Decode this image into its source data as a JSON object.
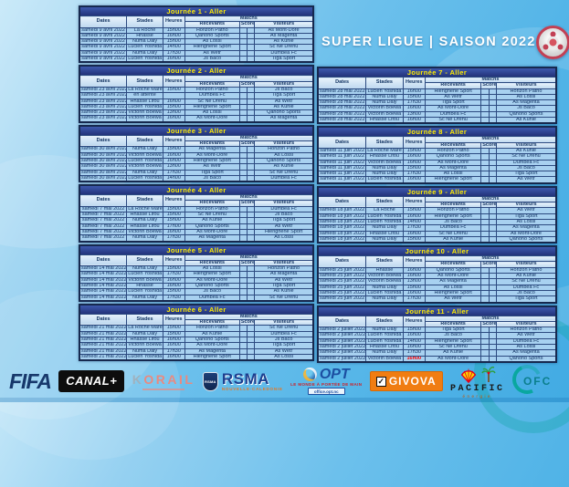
{
  "header": {
    "title": "SUPER LIGUE | SAISON 2022"
  },
  "table_columns": {
    "dates": "Dates",
    "stades": "Stades",
    "heures": "Heures",
    "matchs": "Matchs",
    "recevants": "Recevants",
    "scores": "Scores",
    "visiteurs": "Visiteurs"
  },
  "journees": [
    {
      "title": "Journée 1 - Aller",
      "rows": [
        {
          "date": "samedi 9 avril 2022",
          "stade": "La Roche",
          "heure": "15h00",
          "recevant": "Horizon Patho",
          "visiteur": "As Mont-Dore"
        },
        {
          "date": "samedi 9 avril 2022",
          "stade": "Hnassé",
          "heure": "16h00",
          "recevant": "Qanono Sports",
          "visiteur": "As Magenta"
        },
        {
          "date": "samedi 9 avril 2022",
          "stade": "Numa Daly",
          "heure": "15h00",
          "recevant": "As Lossi",
          "visiteur": "As Kunie"
        },
        {
          "date": "samedi 9 avril 2022",
          "stade": "Lucien Yoshida",
          "heure": "14h00",
          "recevant": "Hienghène Sport",
          "visiteur": "Sc Ne Drehu"
        },
        {
          "date": "samedi 9 avril 2022",
          "stade": "Numa Daly",
          "heure": "17h30",
          "recevant": "As Wetr",
          "visiteur": "Dumbea Fc"
        },
        {
          "date": "samedi 9 avril 2022",
          "stade": "Lucien Yoshida",
          "heure": "16h00",
          "recevant": "Js Baco",
          "visiteur": "Tiga Sport"
        }
      ]
    },
    {
      "title": "Journée 2 - Aller",
      "rows": [
        {
          "date": "samedi 23 avril 2022",
          "stade": "La Roche Maré",
          "heure": "15h00",
          "recevant": "Horizon Patho",
          "visiteur": "Js Baco"
        },
        {
          "date": "samedi 23 avril 2022",
          "stade": "en attente",
          "heure": "",
          "recevant": "Dumbea Fc",
          "visiteur": "Tiga Sport"
        },
        {
          "date": "samedi 23 avril 2022",
          "stade": "Hnasse Lifou",
          "heure": "16h00",
          "recevant": "Sc Ne Drehu",
          "visiteur": "As Wetr"
        },
        {
          "date": "samedi 23 avril 2022",
          "stade": "Lucien Yoshida",
          "heure": "15h00",
          "recevant": "Hienghène Sport",
          "visiteur": "As Kunie"
        },
        {
          "date": "samedi 23 avril 2022",
          "stade": "Victorin Boewa",
          "heure": "13h00",
          "recevant": "As Lossi",
          "visiteur": "Qanono Sports"
        },
        {
          "date": "samedi 23 avril 2022",
          "stade": "Victorin Boewa",
          "heure": "16h00",
          "recevant": "As Mont-Dore",
          "visiteur": "As Magenta"
        }
      ]
    },
    {
      "title": "Journée 3 - Aller",
      "rows": [
        {
          "date": "samedi 30 avril 2022",
          "stade": "Numa Daly",
          "heure": "15h00",
          "recevant": "As Magenta",
          "visiteur": "Horizon Patho"
        },
        {
          "date": "samedi 30 avril 2022",
          "stade": "Victorin Boewa",
          "heure": "16h00",
          "recevant": "As Mont-Dore",
          "visiteur": "As Lossi"
        },
        {
          "date": "samedi 30 avril 2022",
          "stade": "Lucien Yoshida",
          "heure": "16h00",
          "recevant": "Hienghène Sport",
          "visiteur": "Qanono Sports"
        },
        {
          "date": "samedi 30 avril 2022",
          "stade": "Victorin Boewa",
          "heure": "13h00",
          "recevant": "As Wetr",
          "visiteur": "As Kunie"
        },
        {
          "date": "samedi 30 avril 2022",
          "stade": "Numa Daly",
          "heure": "17h30",
          "recevant": "Tiga Sport",
          "visiteur": "Sc Ne Drehu"
        },
        {
          "date": "samedi 30 avril 2022",
          "stade": "Lucien Yoshida",
          "heure": "14h00",
          "recevant": "Js Baco",
          "visiteur": "Dumbea Fc"
        }
      ]
    },
    {
      "title": "Journée 4 - Aller",
      "rows": [
        {
          "date": "samedi 7 mai 2022",
          "stade": "La Roche Maré",
          "heure": "15h00",
          "recevant": "Horizon Patho",
          "visiteur": "Dumbea Fc"
        },
        {
          "date": "samedi 7 mai 2022",
          "stade": "Hnasse Lifou",
          "heure": "15h00",
          "recevant": "Sc Ne Drehu",
          "visiteur": "Js Baco"
        },
        {
          "date": "samedi 7 mai 2022",
          "stade": "Numa Daly",
          "heure": "15h00",
          "recevant": "As Kunie",
          "visiteur": "Tiga Sport"
        },
        {
          "date": "samedi 7 mai 2022",
          "stade": "Hnasse Lifou",
          "heure": "17h00",
          "recevant": "Qanono Sports",
          "visiteur": "As Wetr"
        },
        {
          "date": "samedi 7 mai 2022",
          "stade": "Victorin Boewa",
          "heure": "16h00",
          "recevant": "As Mont-Dore",
          "visiteur": "Hienghène Sport"
        },
        {
          "date": "samedi 7 mai 2022",
          "stade": "Numa Daly",
          "heure": "17h30",
          "recevant": "As Magenta",
          "visiteur": "As Lossi"
        }
      ]
    },
    {
      "title": "Journée 5 - Aller",
      "rows": [
        {
          "date": "samedi 14 mai 2022",
          "stade": "Numa Daly",
          "heure": "15h00",
          "recevant": "As Lossi",
          "visiteur": "Horizon Patho"
        },
        {
          "date": "samedi 14 mai 2022",
          "stade": "Lucien Yoshida",
          "heure": "17h30",
          "recevant": "Hienghène Sport",
          "visiteur": "As Magenta"
        },
        {
          "date": "samedi 14 mai 2022",
          "stade": "Victorin Boewa",
          "heure": "16h00",
          "recevant": "As Mont-Dore",
          "visiteur": "As Wetr"
        },
        {
          "date": "samedi 14 mai 2022",
          "stade": "Hnassé",
          "heure": "16h00",
          "recevant": "Qanono Sports",
          "visiteur": "Tiga Sport"
        },
        {
          "date": "samedi 14 mai 2022",
          "stade": "Lucien Yoshida",
          "heure": "15h00",
          "recevant": "Js Baco",
          "visiteur": "As Kunie"
        },
        {
          "date": "samedi 14 mai 2022",
          "stade": "Numa Daly",
          "heure": "17h30",
          "recevant": "Dumbea Fc",
          "visiteur": "Sc Ne Drehu"
        }
      ]
    },
    {
      "title": "Journée 6 - Aller",
      "rows": [
        {
          "date": "samedi 21 mai 2022",
          "stade": "La Roche Maré",
          "heure": "15h00",
          "recevant": "Horizon Patho",
          "visiteur": "Sc Ne Drehu"
        },
        {
          "date": "samedi 21 mai 2022",
          "stade": "Numa Daly",
          "heure": "15h00",
          "recevant": "As Kunie",
          "visiteur": "Dumbea Fc"
        },
        {
          "date": "samedi 21 mai 2022",
          "stade": "Hnasse Lifou",
          "heure": "16h00",
          "recevant": "Qanono Sports",
          "visiteur": "Js Baco"
        },
        {
          "date": "samedi 21 mai 2022",
          "stade": "Victorin Boewa",
          "heure": "16h00",
          "recevant": "As Mont-Dore",
          "visiteur": "Tiga Sport"
        },
        {
          "date": "samedi 21 mai 2022",
          "stade": "Numa Daly",
          "heure": "17h30",
          "recevant": "As Magenta",
          "visiteur": "As Wetr"
        },
        {
          "date": "samedi 21 mai 2022",
          "stade": "Lucien Yoshida",
          "heure": "16h00",
          "recevant": "Hienghène Sport",
          "visiteur": "As Lossi"
        }
      ]
    },
    {
      "title": "Journée 7 - Aller",
      "rows": [
        {
          "date": "samedi 28 mai 2022",
          "stade": "Lucien Yoshida",
          "heure": "16h00",
          "recevant": "Hienghène Sport",
          "visiteur": "Horizon Patho"
        },
        {
          "date": "samedi 28 mai 2022",
          "stade": "Numa Daly",
          "heure": "15h00",
          "recevant": "As Wetr",
          "visiteur": "As Lossi"
        },
        {
          "date": "samedi 28 mai 2022",
          "stade": "Numa Daly",
          "heure": "17h30",
          "recevant": "Tiga Sport",
          "visiteur": "As Magenta"
        },
        {
          "date": "samedi 28 mai 2022",
          "stade": "Victorin Boewa",
          "heure": "16h00",
          "recevant": "As Mont-Dore",
          "visiteur": "Js Baco"
        },
        {
          "date": "samedi 28 mai 2022",
          "stade": "Victorin Boewa",
          "heure": "13h00",
          "recevant": "Dumbea Fc",
          "visiteur": "Qanono Sports"
        },
        {
          "date": "samedi 28 mai 2022",
          "stade": "Hnasse Lifou",
          "heure": "16h00",
          "recevant": "Sc Ne Drehu",
          "visiteur": "As Kunie"
        }
      ]
    },
    {
      "title": "Journée 8 - Aller",
      "rows": [
        {
          "date": "samedi 11 juin 2022",
          "stade": "La Roche Maré",
          "heure": "15h00",
          "recevant": "Horizon Patho",
          "visiteur": "As Kunie"
        },
        {
          "date": "samedi 11 juin 2022",
          "stade": "Hnasse Lifou",
          "heure": "16h00",
          "recevant": "Qanono Sports",
          "visiteur": "Sc Ne Drehu"
        },
        {
          "date": "samedi 11 juin 2022",
          "stade": "Victorin Boewa",
          "heure": "16h00",
          "recevant": "As Mont-Dore",
          "visiteur": "Dumbea Fc"
        },
        {
          "date": "samedi 11 juin 2022",
          "stade": "Numa Daly",
          "heure": "15h00",
          "recevant": "As Magenta",
          "visiteur": "Js Baco"
        },
        {
          "date": "samedi 11 juin 2022",
          "stade": "Numa Daly",
          "heure": "17h30",
          "recevant": "As Lossi",
          "visiteur": "Tiga Sport"
        },
        {
          "date": "samedi 11 juin 2022",
          "stade": "Lucien Yoshida",
          "heure": "16h00",
          "recevant": "Hienghène Sport",
          "visiteur": "As Wetr"
        }
      ]
    },
    {
      "title": "Journée 9 - Aller",
      "rows": [
        {
          "date": "samedi 18 juin 2022",
          "stade": "La Roche",
          "heure": "15h00",
          "recevant": "Horizon Patho",
          "visiteur": "As Wetr"
        },
        {
          "date": "samedi 18 juin 2022",
          "stade": "Lucien Yoshida",
          "heure": "16h00",
          "recevant": "Hienghène Sport",
          "visiteur": "Tiga Sport"
        },
        {
          "date": "samedi 18 juin 2022",
          "stade": "Lucien Yoshida",
          "heure": "14h00",
          "recevant": "Js Baco",
          "visiteur": "As Lossi"
        },
        {
          "date": "samedi 18 juin 2022",
          "stade": "Numa Daly",
          "heure": "17h30",
          "recevant": "Dumbea Fc",
          "visiteur": "As Magenta"
        },
        {
          "date": "samedi 18 juin 2022",
          "stade": "Hnasse Lifou",
          "heure": "16h00",
          "recevant": "Sc Ne Drehu",
          "visiteur": "As Mont-Dore"
        },
        {
          "date": "samedi 18 juin 2022",
          "stade": "Numa Daly",
          "heure": "15h00",
          "recevant": "As Kunie",
          "visiteur": "Qanono Sports"
        }
      ]
    },
    {
      "title": "Journée 10 - Aller",
      "rows": [
        {
          "date": "samedi 25 juin 2022",
          "stade": "Hnassé",
          "heure": "16h00",
          "recevant": "Qanono Sports",
          "visiteur": "Horizon Patho"
        },
        {
          "date": "samedi 25 juin 2022",
          "stade": "Victorin Boewa",
          "heure": "16h00",
          "recevant": "As Mont-Dore",
          "visiteur": "As Kunie"
        },
        {
          "date": "samedi 25 juin 2022",
          "stade": "Victorin Boewa",
          "heure": "13h00",
          "recevant": "As Magenta",
          "visiteur": "Sc Ne Drehu"
        },
        {
          "date": "samedi 25 juin 2022",
          "stade": "Numa Daly",
          "heure": "15h00",
          "recevant": "As Lossi",
          "visiteur": "Dumbea Fc"
        },
        {
          "date": "samedi 25 juin 2022",
          "stade": "Lucien Yoshida",
          "heure": "16h00",
          "recevant": "Hienghène Sport",
          "visiteur": "Js Baco"
        },
        {
          "date": "samedi 25 juin 2022",
          "stade": "Numa Daly",
          "heure": "17h30",
          "recevant": "As Wetr",
          "visiteur": "Tiga Sport"
        }
      ]
    },
    {
      "title": "Journée 11 - Aller",
      "rows": [
        {
          "date": "samedi 2 juillet 2022",
          "stade": "Numa Daly",
          "heure": "15h00",
          "recevant": "Tiga Sport",
          "visiteur": "Horizon Patho"
        },
        {
          "date": "samedi 2 juillet 2022",
          "stade": "Lucien Yoshida",
          "heure": "16h00",
          "recevant": "Js Baco",
          "visiteur": "As Wetr"
        },
        {
          "date": "samedi 2 juillet 2022",
          "stade": "Lucien Yoshida",
          "heure": "14h00",
          "recevant": "Hienghène Sport",
          "visiteur": "Dumbea Fc"
        },
        {
          "date": "samedi 2 juillet 2022",
          "stade": "Hnasse Lifou",
          "heure": "16h00",
          "recevant": "Sc Ne Drehu",
          "visiteur": "As Lossi"
        },
        {
          "date": "samedi 2 juillet 2022",
          "stade": "Numa Daly",
          "heure": "17h30",
          "recevant": "As Kunie",
          "visiteur": "As Magenta"
        },
        {
          "date": "samedi 2 juillet 2022",
          "stade": "Victorin Boewa",
          "heure": "16h00",
          "red": true,
          "recevant": "As Mont-Dore",
          "visiteur": "Qanono Sports"
        }
      ]
    }
  ],
  "sponsors": {
    "fifa": {
      "label": "FIFA"
    },
    "canal": {
      "label": "CANAL+"
    },
    "korail": {
      "label": "ORAIL",
      "initial": "K"
    },
    "rsma": {
      "badge": "RSMA",
      "label": "RSMA",
      "sub": "NOUVELLE-CALEDONIE"
    },
    "opt": {
      "label": "OPT",
      "tagline": "LE MONDE À PORTÉE DE MAIN",
      "sub": "office.opt.nc"
    },
    "givova": {
      "label": "GIVOVA"
    },
    "pacific": {
      "label": "PACIFIC",
      "sub": "énergie"
    },
    "ofc": {
      "label": "OFC"
    }
  },
  "icons": {
    "givova_check": "✓"
  }
}
